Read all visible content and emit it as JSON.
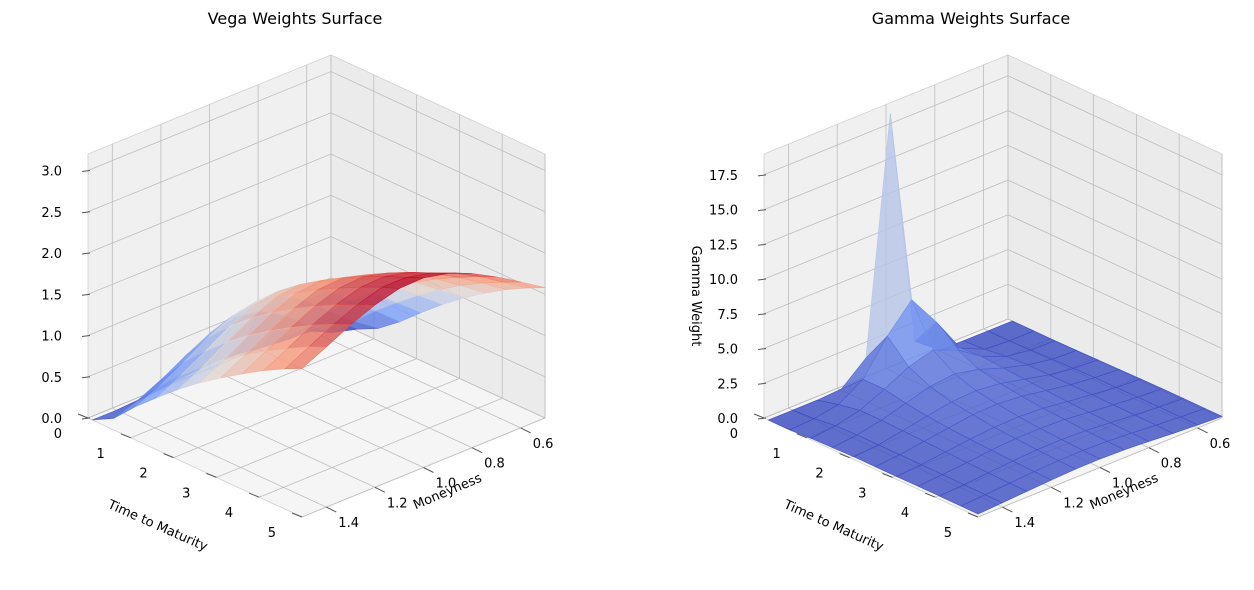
{
  "chart_data": [
    {
      "type": "surface3d",
      "title": "Vega Weights Surface",
      "xlabel": "Moneyness",
      "ylabel": "Time to Maturity",
      "zlabel": "",
      "x_ticks": [
        "0.6",
        "0.8",
        "1.0",
        "1.2",
        "1.4"
      ],
      "y_ticks": [
        "0",
        "1",
        "2",
        "3",
        "4",
        "5"
      ],
      "z_ticks": [
        "0.0",
        "0.5",
        "1.0",
        "1.5",
        "2.0",
        "2.5",
        "3.0"
      ],
      "xlim": [
        0.5,
        1.5
      ],
      "ylim": [
        0,
        5
      ],
      "zlim": [
        0,
        3.2
      ],
      "colormap": "coolwarm",
      "grid": true,
      "x": [
        0.5,
        0.6,
        0.7,
        0.8,
        0.9,
        1.0,
        1.1,
        1.2,
        1.3,
        1.4,
        1.5
      ],
      "y": [
        0.1,
        0.6,
        1.1,
        1.6,
        2.1,
        2.6,
        3.1,
        3.6,
        4.1,
        4.6,
        5.0
      ],
      "z": [
        [
          0.0,
          0.0,
          0.01,
          0.04,
          0.08,
          0.1,
          0.08,
          0.04,
          0.01,
          0.0,
          0.0
        ],
        [
          0.02,
          0.1,
          0.3,
          0.55,
          0.72,
          0.77,
          0.7,
          0.55,
          0.38,
          0.24,
          0.14
        ],
        [
          0.15,
          0.35,
          0.6,
          0.85,
          1.02,
          1.08,
          1.02,
          0.88,
          0.7,
          0.53,
          0.4
        ],
        [
          0.35,
          0.6,
          0.85,
          1.08,
          1.25,
          1.32,
          1.27,
          1.13,
          0.95,
          0.78,
          0.63
        ],
        [
          0.58,
          0.82,
          1.07,
          1.28,
          1.44,
          1.52,
          1.48,
          1.35,
          1.18,
          1.0,
          0.85
        ],
        [
          0.8,
          1.03,
          1.26,
          1.46,
          1.61,
          1.69,
          1.66,
          1.54,
          1.38,
          1.2,
          1.05
        ],
        [
          1.0,
          1.22,
          1.43,
          1.62,
          1.76,
          1.84,
          1.82,
          1.71,
          1.56,
          1.39,
          1.23
        ],
        [
          1.18,
          1.39,
          1.59,
          1.77,
          1.9,
          1.98,
          1.96,
          1.86,
          1.72,
          1.56,
          1.4
        ],
        [
          1.34,
          1.54,
          1.73,
          1.9,
          2.03,
          2.1,
          2.09,
          2.0,
          1.87,
          1.71,
          1.56
        ],
        [
          1.48,
          1.67,
          1.86,
          2.02,
          2.14,
          2.21,
          2.21,
          2.12,
          2.0,
          1.85,
          1.7
        ],
        [
          1.58,
          1.77,
          1.95,
          2.11,
          2.23,
          2.3,
          2.29,
          2.21,
          2.09,
          1.94,
          1.8
        ]
      ]
    },
    {
      "type": "surface3d",
      "title": "Gamma Weights Surface",
      "xlabel": "Moneyness",
      "ylabel": "Time to Maturity",
      "zlabel": "Gamma Weight",
      "x_ticks": [
        "0.6",
        "0.8",
        "1.0",
        "1.2",
        "1.4"
      ],
      "y_ticks": [
        "0",
        "1",
        "2",
        "3",
        "4",
        "5"
      ],
      "z_ticks": [
        "0.0",
        "2.5",
        "5.0",
        "7.5",
        "10.0",
        "12.5",
        "15.0",
        "17.5"
      ],
      "xlim": [
        0.5,
        1.5
      ],
      "ylim": [
        0,
        5
      ],
      "zlim": [
        0,
        19
      ],
      "colormap": "coolwarm",
      "grid": true,
      "x": [
        0.5,
        0.6,
        0.7,
        0.8,
        0.9,
        1.0,
        1.1,
        1.2,
        1.3,
        1.4,
        1.5
      ],
      "y": [
        0.1,
        0.6,
        1.1,
        1.6,
        2.1,
        2.6,
        3.1,
        3.6,
        4.1,
        4.6,
        5.0
      ],
      "z": [
        [
          0.0,
          0.0,
          0.0,
          0.05,
          1.4,
          18.5,
          1.6,
          0.1,
          0.0,
          0.0,
          0.0
        ],
        [
          0.0,
          0.0,
          0.1,
          0.9,
          3.5,
          5.8,
          3.9,
          1.5,
          0.4,
          0.1,
          0.0
        ],
        [
          0.0,
          0.05,
          0.3,
          1.0,
          2.2,
          2.9,
          2.4,
          1.5,
          0.7,
          0.3,
          0.1
        ],
        [
          0.02,
          0.1,
          0.4,
          0.9,
          1.5,
          1.9,
          1.7,
          1.2,
          0.7,
          0.35,
          0.15
        ],
        [
          0.05,
          0.15,
          0.4,
          0.8,
          1.2,
          1.4,
          1.3,
          1.0,
          0.65,
          0.35,
          0.2
        ],
        [
          0.08,
          0.2,
          0.4,
          0.7,
          1.0,
          1.15,
          1.1,
          0.85,
          0.6,
          0.35,
          0.2
        ],
        [
          0.1,
          0.2,
          0.4,
          0.6,
          0.85,
          0.95,
          0.9,
          0.75,
          0.55,
          0.35,
          0.2
        ],
        [
          0.12,
          0.22,
          0.38,
          0.55,
          0.75,
          0.82,
          0.8,
          0.68,
          0.5,
          0.35,
          0.22
        ],
        [
          0.12,
          0.22,
          0.36,
          0.52,
          0.66,
          0.73,
          0.71,
          0.61,
          0.47,
          0.33,
          0.22
        ],
        [
          0.12,
          0.22,
          0.34,
          0.48,
          0.6,
          0.66,
          0.64,
          0.56,
          0.44,
          0.32,
          0.22
        ],
        [
          0.12,
          0.21,
          0.32,
          0.45,
          0.56,
          0.61,
          0.6,
          0.52,
          0.42,
          0.31,
          0.21
        ]
      ]
    }
  ]
}
